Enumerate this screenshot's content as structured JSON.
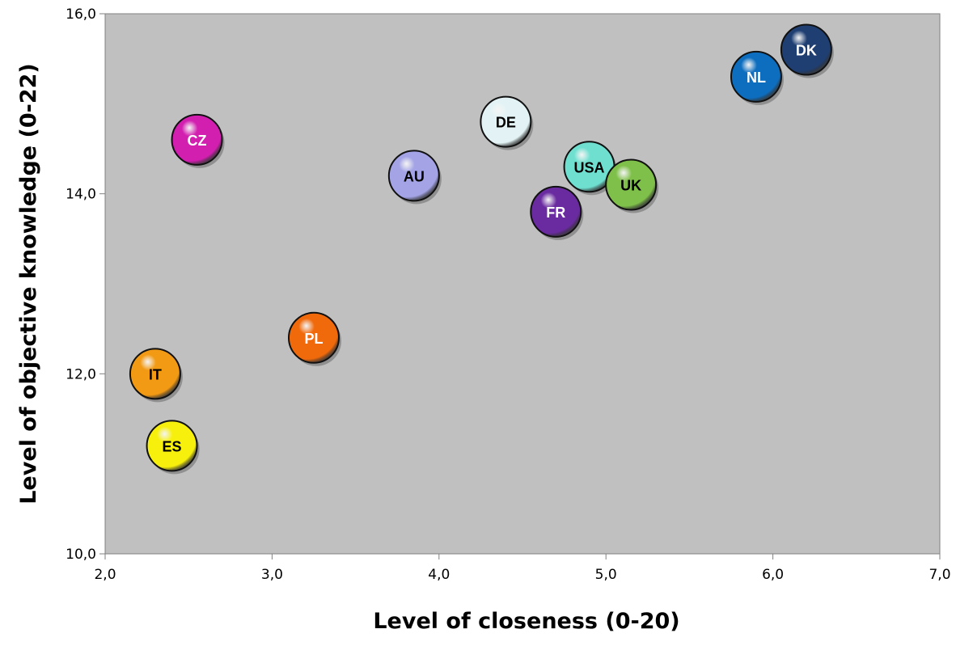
{
  "chart_data": {
    "type": "scatter",
    "xlabel": "Level of closeness (0-20)",
    "ylabel": "Level of objective knowledge (0-22)",
    "xlim": [
      2.0,
      7.0
    ],
    "ylim": [
      10.0,
      16.0
    ],
    "x_ticks": [
      "2,0",
      "3,0",
      "4,0",
      "5,0",
      "6,0",
      "7,0"
    ],
    "y_ticks": [
      "10,0",
      "12,0",
      "14,0",
      "16,0"
    ],
    "grid": false,
    "plot_background": "#c0c0c0",
    "points": [
      {
        "label": "DK",
        "x": 6.2,
        "y": 15.6,
        "color": "#1f3f73",
        "text_color": "#ffffff"
      },
      {
        "label": "NL",
        "x": 5.9,
        "y": 15.3,
        "color": "#0d6ebf",
        "text_color": "#ffffff"
      },
      {
        "label": "DE",
        "x": 4.4,
        "y": 14.8,
        "color": "#e3f3f5",
        "text_color": "#000000"
      },
      {
        "label": "CZ",
        "x": 2.55,
        "y": 14.6,
        "color": "#d21fb0",
        "text_color": "#ffffff"
      },
      {
        "label": "USA",
        "x": 4.9,
        "y": 14.3,
        "color": "#6fe0d0",
        "text_color": "#000000"
      },
      {
        "label": "AU",
        "x": 3.85,
        "y": 14.2,
        "color": "#a3a3e6",
        "text_color": "#000000"
      },
      {
        "label": "UK",
        "x": 5.15,
        "y": 14.1,
        "color": "#7fc04a",
        "text_color": "#000000"
      },
      {
        "label": "FR",
        "x": 4.7,
        "y": 13.8,
        "color": "#6a2ba0",
        "text_color": "#ffffff"
      },
      {
        "label": "PL",
        "x": 3.25,
        "y": 12.4,
        "color": "#f06a0c",
        "text_color": "#ffffff"
      },
      {
        "label": "IT",
        "x": 2.3,
        "y": 12.0,
        "color": "#f29a14",
        "text_color": "#000000"
      },
      {
        "label": "ES",
        "x": 2.4,
        "y": 11.2,
        "color": "#f7f00c",
        "text_color": "#000000"
      }
    ]
  }
}
